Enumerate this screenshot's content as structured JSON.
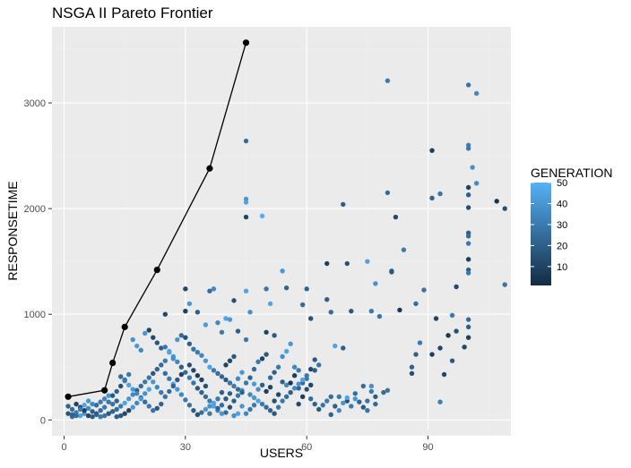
{
  "chart_data": {
    "type": "scatter",
    "title": "NSGA II Pareto Frontier",
    "xlabel": "USERS",
    "ylabel": "RESPONSETIME",
    "xlim": [
      -3,
      110.5
    ],
    "ylim": [
      -150,
      3720
    ],
    "x_ticks": [
      0,
      30,
      60,
      90
    ],
    "y_ticks": [
      0,
      1000,
      2000,
      3000
    ],
    "x_minor": [
      15,
      45,
      75,
      105
    ],
    "y_minor": [
      500,
      1500,
      2500,
      3500
    ],
    "grid": true,
    "panel_background": "#ebebeb",
    "legend": {
      "title": "GENERATION",
      "position": "right",
      "range": [
        1,
        50
      ],
      "ticks": [
        10,
        20,
        30,
        40,
        50
      ],
      "low_color": "#132b43",
      "high_color": "#56b1f7"
    },
    "frontier": {
      "color": "#000000",
      "points": [
        [
          1,
          220
        ],
        [
          10,
          280
        ],
        [
          12,
          540
        ],
        [
          15,
          880
        ],
        [
          23,
          1420
        ],
        [
          36,
          2380
        ],
        [
          45,
          3570
        ]
      ]
    },
    "points": [
      [
        80,
        3210,
        30
      ],
      [
        100,
        3170,
        28
      ],
      [
        102,
        3090,
        35
      ],
      [
        91,
        2550,
        8
      ],
      [
        100,
        2600,
        32
      ],
      [
        100,
        2570,
        30
      ],
      [
        45,
        2640,
        25
      ],
      [
        101,
        2390,
        38
      ],
      [
        102,
        2240,
        36
      ],
      [
        107,
        2070,
        5
      ],
      [
        109,
        2000,
        15
      ],
      [
        80,
        2150,
        25
      ],
      [
        91,
        2100,
        22
      ],
      [
        93,
        2140,
        28
      ],
      [
        100,
        2200,
        10
      ],
      [
        100,
        2130,
        20
      ],
      [
        100,
        2010,
        15
      ],
      [
        45,
        2090,
        40
      ],
      [
        45,
        2060,
        45
      ],
      [
        45,
        1920,
        10
      ],
      [
        49,
        1930,
        48
      ],
      [
        69,
        2040,
        20
      ],
      [
        82,
        1920,
        12
      ],
      [
        100,
        1770,
        20
      ],
      [
        100,
        1740,
        25
      ],
      [
        100,
        1670,
        30
      ],
      [
        100,
        1520,
        8
      ],
      [
        84,
        1610,
        30
      ],
      [
        65,
        1480,
        8
      ],
      [
        70,
        1480,
        15
      ],
      [
        81,
        1410,
        20
      ],
      [
        81,
        1400,
        18
      ],
      [
        75,
        1500,
        45
      ],
      [
        77,
        1290,
        38
      ],
      [
        97,
        1260,
        12
      ],
      [
        100,
        1420,
        20
      ],
      [
        100,
        1390,
        30
      ],
      [
        109,
        1280,
        28
      ],
      [
        54,
        1410,
        40
      ],
      [
        59,
        1090,
        25
      ],
      [
        55,
        1250,
        22
      ],
      [
        50,
        1240,
        28
      ],
      [
        51,
        1100,
        45
      ],
      [
        36,
        1220,
        25
      ],
      [
        37,
        1240,
        35
      ],
      [
        45,
        1220,
        45
      ],
      [
        42,
        1130,
        15
      ],
      [
        30,
        1240,
        10
      ],
      [
        31,
        1100,
        40
      ],
      [
        30,
        1030,
        8
      ],
      [
        33,
        1020,
        20
      ],
      [
        25,
        1000,
        12
      ],
      [
        35,
        900,
        42
      ],
      [
        38,
        920,
        35
      ],
      [
        39,
        830,
        30
      ],
      [
        40,
        960,
        45
      ],
      [
        41,
        950,
        40
      ],
      [
        43,
        840,
        20
      ],
      [
        45,
        760,
        30
      ],
      [
        46,
        1020,
        38
      ],
      [
        50,
        830,
        10
      ],
      [
        52,
        800,
        18
      ],
      [
        60,
        1240,
        22
      ],
      [
        61,
        960,
        15
      ],
      [
        65,
        1140,
        20
      ],
      [
        66,
        1020,
        25
      ],
      [
        71,
        1030,
        18
      ],
      [
        76,
        1030,
        30
      ],
      [
        78,
        980,
        28
      ],
      [
        83,
        1040,
        5
      ],
      [
        87,
        1100,
        25
      ],
      [
        89,
        1230,
        28
      ],
      [
        92,
        960,
        10
      ],
      [
        96,
        990,
        30
      ],
      [
        100,
        950,
        25
      ],
      [
        100,
        880,
        20
      ],
      [
        97,
        840,
        15
      ],
      [
        100,
        780,
        8
      ],
      [
        95,
        800,
        5
      ],
      [
        93,
        680,
        10
      ],
      [
        91,
        620,
        8
      ],
      [
        99,
        690,
        12
      ],
      [
        96,
        560,
        18
      ],
      [
        87,
        620,
        20
      ],
      [
        86,
        500,
        22
      ],
      [
        88,
        730,
        30
      ],
      [
        94,
        430,
        12
      ],
      [
        93,
        170,
        32
      ],
      [
        79,
        260,
        25
      ],
      [
        76,
        320,
        38
      ],
      [
        77,
        220,
        20
      ],
      [
        75,
        180,
        28
      ],
      [
        74,
        320,
        25
      ],
      [
        72,
        200,
        40
      ],
      [
        70,
        180,
        15
      ],
      [
        68,
        220,
        30
      ],
      [
        67,
        700,
        45
      ],
      [
        69,
        680,
        20
      ],
      [
        62,
        570,
        18
      ],
      [
        63,
        520,
        28
      ],
      [
        61,
        480,
        12
      ],
      [
        60,
        390,
        30
      ],
      [
        59,
        350,
        25
      ],
      [
        58,
        300,
        22
      ],
      [
        57,
        500,
        35
      ],
      [
        56,
        720,
        40
      ],
      [
        55,
        650,
        45
      ],
      [
        54,
        600,
        38
      ],
      [
        53,
        500,
        30
      ],
      [
        52,
        450,
        20
      ],
      [
        51,
        400,
        25
      ],
      [
        50,
        620,
        18
      ],
      [
        49,
        580,
        10
      ],
      [
        48,
        550,
        30
      ],
      [
        47,
        480,
        25
      ],
      [
        46,
        400,
        22
      ],
      [
        45,
        350,
        30
      ],
      [
        44,
        280,
        38
      ],
      [
        43,
        230,
        28
      ],
      [
        42,
        180,
        20
      ],
      [
        41,
        120,
        15
      ],
      [
        40,
        70,
        25
      ],
      [
        39,
        60,
        40
      ],
      [
        38,
        90,
        35
      ],
      [
        37,
        130,
        45
      ],
      [
        36,
        180,
        30
      ],
      [
        35,
        220,
        25
      ],
      [
        34,
        260,
        22
      ],
      [
        33,
        300,
        18
      ],
      [
        32,
        350,
        28
      ],
      [
        31,
        400,
        30
      ],
      [
        30,
        450,
        25
      ],
      [
        29,
        500,
        20
      ],
      [
        28,
        550,
        35
      ],
      [
        27,
        600,
        40
      ],
      [
        26,
        650,
        45
      ],
      [
        25,
        560,
        30
      ],
      [
        24,
        520,
        25
      ],
      [
        23,
        480,
        22
      ],
      [
        22,
        440,
        18
      ],
      [
        21,
        400,
        28
      ],
      [
        20,
        360,
        30
      ],
      [
        19,
        320,
        25
      ],
      [
        18,
        280,
        20
      ],
      [
        17,
        240,
        35
      ],
      [
        16,
        200,
        40
      ],
      [
        15,
        160,
        45
      ],
      [
        14,
        130,
        30
      ],
      [
        13,
        100,
        25
      ],
      [
        12,
        80,
        22
      ],
      [
        11,
        60,
        18
      ],
      [
        10,
        40,
        28
      ],
      [
        9,
        30,
        30
      ],
      [
        8,
        50,
        25
      ],
      [
        7,
        80,
        20
      ],
      [
        6,
        110,
        35
      ],
      [
        5,
        60,
        40
      ],
      [
        4,
        40,
        45
      ],
      [
        3,
        70,
        30
      ],
      [
        2,
        100,
        25
      ],
      [
        1,
        130,
        22
      ],
      [
        1,
        60,
        18
      ],
      [
        2,
        30,
        28
      ],
      [
        3,
        150,
        10
      ],
      [
        4,
        120,
        15
      ],
      [
        5,
        90,
        8
      ],
      [
        6,
        40,
        12
      ],
      [
        7,
        30,
        20
      ],
      [
        8,
        140,
        25
      ],
      [
        9,
        170,
        30
      ],
      [
        10,
        200,
        35
      ],
      [
        11,
        230,
        40
      ],
      [
        12,
        150,
        28
      ],
      [
        13,
        270,
        20
      ],
      [
        14,
        320,
        15
      ],
      [
        15,
        380,
        25
      ],
      [
        16,
        430,
        30
      ],
      [
        17,
        760,
        38
      ],
      [
        18,
        700,
        42
      ],
      [
        19,
        660,
        35
      ],
      [
        20,
        820,
        40
      ],
      [
        21,
        850,
        10
      ],
      [
        22,
        780,
        12
      ],
      [
        23,
        730,
        18
      ],
      [
        24,
        680,
        20
      ],
      [
        25,
        690,
        30
      ],
      [
        26,
        640,
        45
      ],
      [
        27,
        580,
        38
      ],
      [
        28,
        760,
        40
      ],
      [
        29,
        800,
        25
      ],
      [
        30,
        780,
        15
      ],
      [
        31,
        720,
        20
      ],
      [
        32,
        670,
        28
      ],
      [
        33,
        640,
        30
      ],
      [
        34,
        610,
        35
      ],
      [
        35,
        560,
        40
      ],
      [
        36,
        500,
        45
      ],
      [
        37,
        470,
        30
      ],
      [
        38,
        440,
        25
      ],
      [
        39,
        410,
        22
      ],
      [
        40,
        380,
        18
      ],
      [
        41,
        350,
        28
      ],
      [
        42,
        320,
        30
      ],
      [
        43,
        290,
        25
      ],
      [
        44,
        260,
        20
      ],
      [
        46,
        240,
        35
      ],
      [
        47,
        210,
        40
      ],
      [
        48,
        180,
        45
      ],
      [
        49,
        150,
        30
      ],
      [
        50,
        120,
        25
      ],
      [
        51,
        90,
        22
      ],
      [
        52,
        60,
        18
      ],
      [
        53,
        120,
        28
      ],
      [
        54,
        180,
        30
      ],
      [
        55,
        220,
        25
      ],
      [
        56,
        260,
        20
      ],
      [
        57,
        300,
        35
      ],
      [
        58,
        340,
        40
      ],
      [
        59,
        380,
        45
      ],
      [
        60,
        420,
        30
      ],
      [
        61,
        200,
        25
      ],
      [
        62,
        150,
        22
      ],
      [
        63,
        100,
        18
      ],
      [
        64,
        140,
        28
      ],
      [
        65,
        180,
        30
      ],
      [
        66,
        220,
        25
      ],
      [
        67,
        130,
        20
      ],
      [
        68,
        90,
        35
      ],
      [
        69,
        160,
        40
      ],
      [
        70,
        210,
        45
      ],
      [
        71,
        130,
        30
      ],
      [
        72,
        250,
        25
      ],
      [
        73,
        170,
        22
      ],
      [
        74,
        120,
        18
      ],
      [
        75,
        90,
        28
      ],
      [
        76,
        270,
        30
      ],
      [
        77,
        150,
        25
      ],
      [
        54,
        360,
        20
      ],
      [
        55,
        330,
        35
      ],
      [
        48,
        290,
        38
      ],
      [
        47,
        340,
        42
      ],
      [
        43,
        390,
        35
      ],
      [
        44,
        450,
        40
      ],
      [
        40,
        520,
        10
      ],
      [
        41,
        560,
        12
      ],
      [
        42,
        600,
        18
      ],
      [
        39,
        260,
        20
      ],
      [
        38,
        200,
        30
      ],
      [
        37,
        160,
        45
      ],
      [
        36,
        130,
        38
      ],
      [
        35,
        100,
        40
      ],
      [
        34,
        70,
        25
      ],
      [
        33,
        50,
        15
      ],
      [
        32,
        90,
        20
      ],
      [
        31,
        140,
        28
      ],
      [
        30,
        190,
        30
      ],
      [
        29,
        240,
        35
      ],
      [
        28,
        290,
        40
      ],
      [
        27,
        340,
        45
      ],
      [
        26,
        390,
        30
      ],
      [
        25,
        440,
        25
      ],
      [
        24,
        150,
        22
      ],
      [
        23,
        110,
        18
      ],
      [
        22,
        90,
        28
      ],
      [
        21,
        130,
        30
      ],
      [
        20,
        170,
        25
      ],
      [
        19,
        210,
        20
      ],
      [
        18,
        250,
        35
      ],
      [
        17,
        290,
        40
      ],
      [
        16,
        330,
        45
      ],
      [
        15,
        370,
        30
      ],
      [
        14,
        410,
        25
      ],
      [
        13,
        180,
        22
      ],
      [
        12,
        230,
        18
      ],
      [
        11,
        170,
        28
      ],
      [
        10,
        120,
        30
      ],
      [
        9,
        90,
        25
      ],
      [
        8,
        60,
        20
      ],
      [
        7,
        150,
        35
      ],
      [
        6,
        180,
        40
      ],
      [
        5,
        140,
        45
      ],
      [
        4,
        100,
        30
      ],
      [
        3,
        40,
        25
      ],
      [
        2,
        50,
        22
      ],
      [
        58,
        150,
        12
      ],
      [
        59,
        220,
        8
      ],
      [
        60,
        290,
        15
      ],
      [
        61,
        330,
        10
      ],
      [
        62,
        470,
        20
      ],
      [
        56,
        350,
        5
      ],
      [
        57,
        420,
        8
      ],
      [
        53,
        240,
        12
      ],
      [
        52,
        180,
        15
      ],
      [
        51,
        310,
        10
      ],
      [
        50,
        270,
        8
      ],
      [
        49,
        330,
        20
      ],
      [
        47,
        140,
        30
      ],
      [
        46,
        100,
        28
      ],
      [
        45,
        60,
        35
      ],
      [
        44,
        130,
        40
      ],
      [
        43,
        60,
        45
      ],
      [
        42,
        40,
        38
      ],
      [
        41,
        250,
        20
      ],
      [
        40,
        200,
        18
      ],
      [
        39,
        140,
        25
      ],
      [
        38,
        110,
        22
      ],
      [
        36,
        60,
        30
      ],
      [
        35,
        320,
        15
      ],
      [
        34,
        380,
        10
      ],
      [
        33,
        420,
        8
      ],
      [
        32,
        470,
        12
      ],
      [
        31,
        520,
        15
      ],
      [
        29,
        430,
        10
      ],
      [
        28,
        380,
        18
      ],
      [
        27,
        320,
        22
      ],
      [
        26,
        270,
        25
      ],
      [
        25,
        220,
        28
      ],
      [
        24,
        260,
        30
      ],
      [
        23,
        310,
        35
      ],
      [
        22,
        360,
        40
      ],
      [
        21,
        290,
        45
      ],
      [
        20,
        250,
        38
      ],
      [
        19,
        200,
        42
      ],
      [
        18,
        160,
        35
      ],
      [
        17,
        120,
        40
      ],
      [
        16,
        90,
        10
      ],
      [
        15,
        60,
        12
      ],
      [
        14,
        40,
        18
      ],
      [
        13,
        30,
        20
      ],
      [
        58,
        470,
        30
      ],
      [
        66,
        50,
        22
      ],
      [
        80,
        280,
        28
      ],
      [
        86,
        440,
        15
      ]
    ]
  }
}
